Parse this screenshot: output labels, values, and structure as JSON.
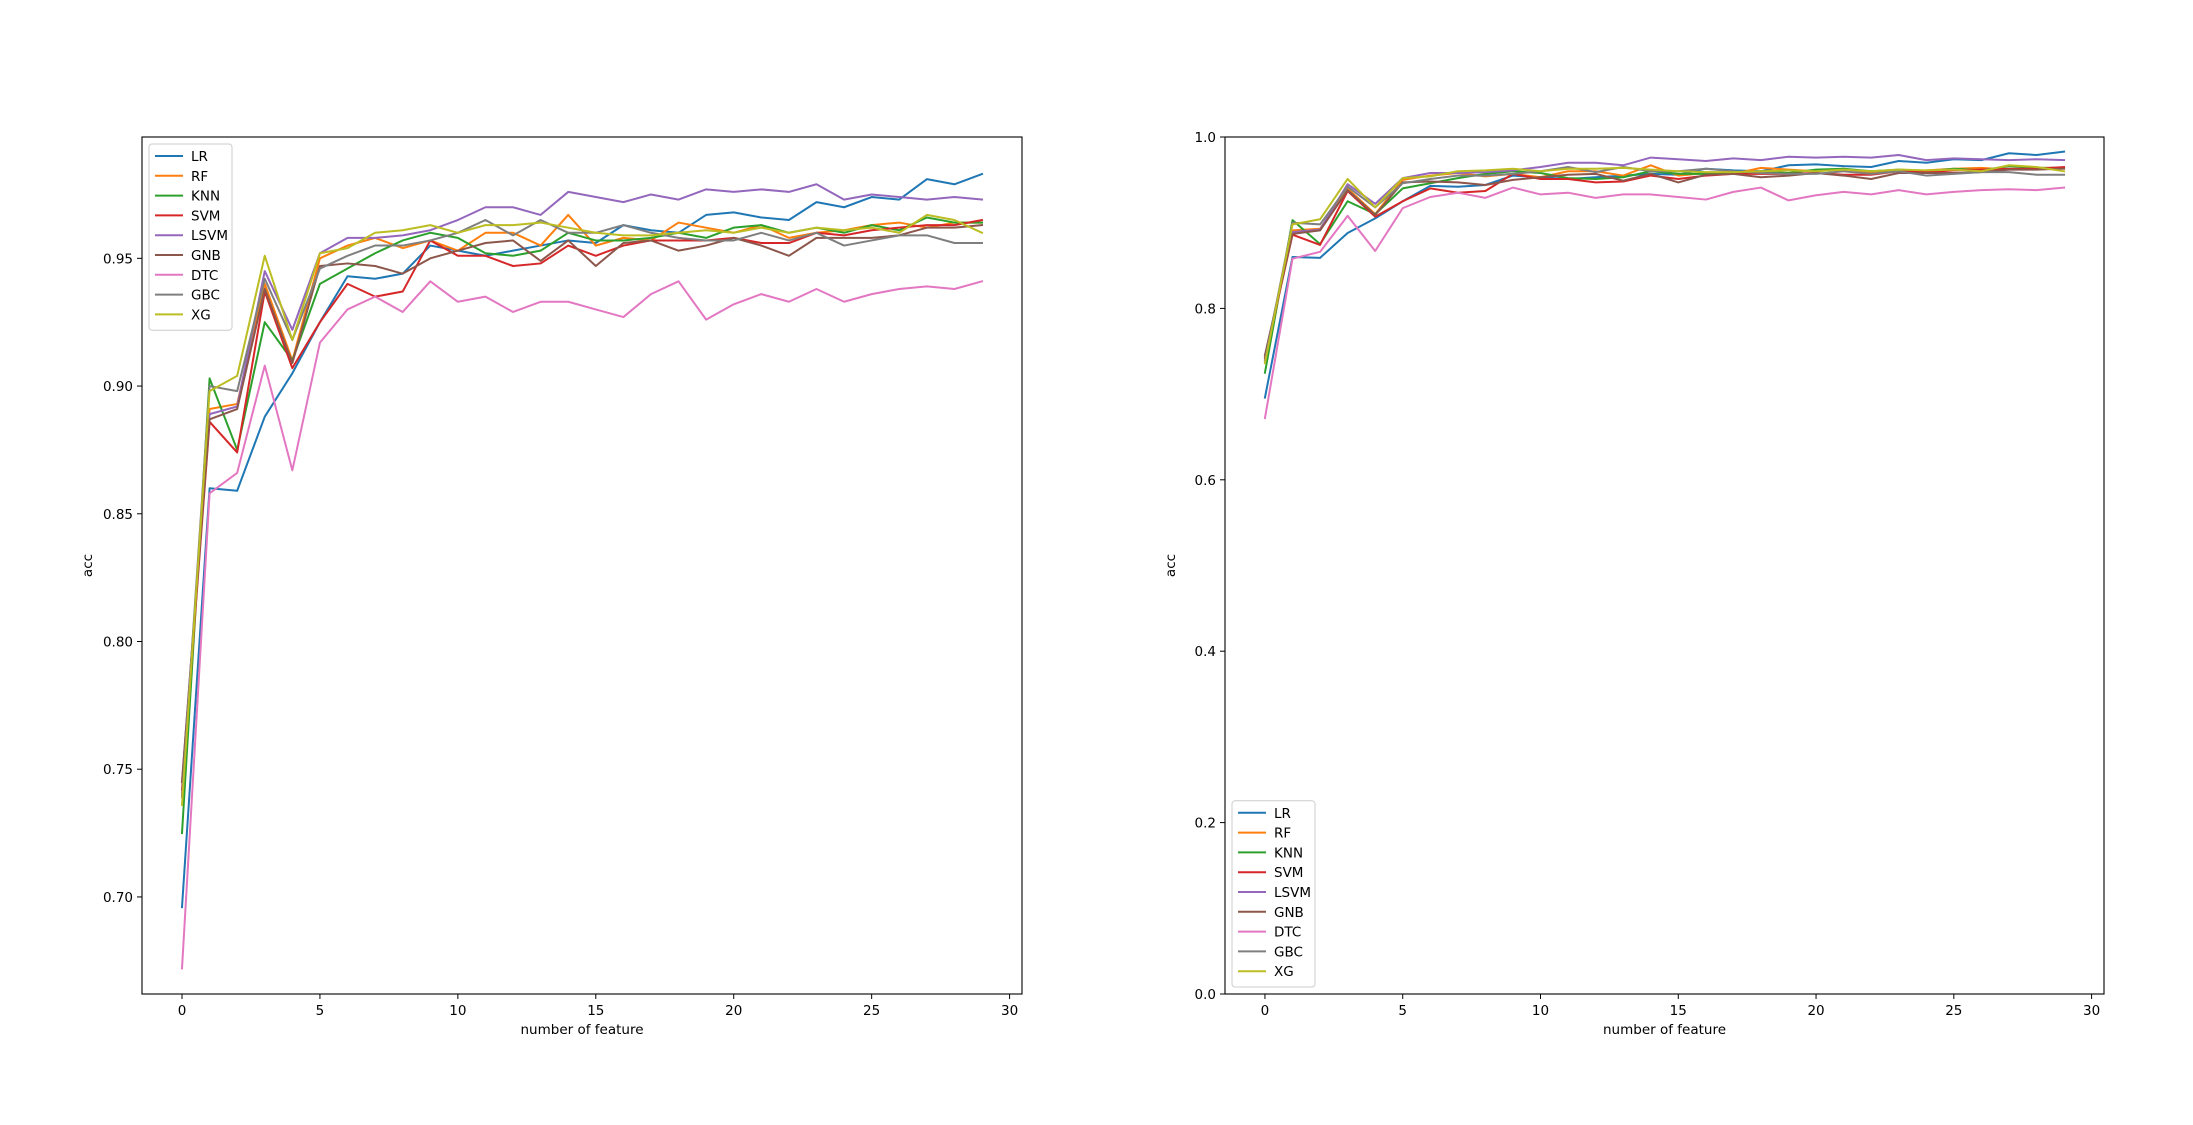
{
  "colors": {
    "LR": "#1f77b4",
    "RF": "#ff7f0e",
    "KNN": "#2ca02c",
    "SVM": "#d62728",
    "LSVM": "#9467bd",
    "GNB": "#8c564b",
    "DTC": "#e377c2",
    "GBC": "#7f7f7f",
    "XG": "#bcbd22"
  },
  "chart_data": [
    {
      "type": "line",
      "xlabel": "number of feature",
      "ylabel": "acc",
      "xlim": [
        -1.45,
        30.45
      ],
      "ylim": [
        0.662,
        0.9975
      ],
      "xticks": [
        0,
        5,
        10,
        15,
        20,
        25,
        30
      ],
      "yticks": [
        0.7,
        0.75,
        0.8,
        0.85,
        0.9,
        0.95
      ],
      "ytick_labels": [
        "0.70",
        "0.75",
        "0.80",
        "0.85",
        "0.90",
        "0.95"
      ],
      "legend_loc": "upper left",
      "x": [
        0,
        1,
        2,
        3,
        4,
        5,
        6,
        7,
        8,
        9,
        10,
        11,
        12,
        13,
        14,
        15,
        16,
        17,
        18,
        19,
        20,
        21,
        22,
        23,
        24,
        25,
        26,
        27,
        28,
        29
      ],
      "series": [
        {
          "name": "LR",
          "values": [
            0.696,
            0.86,
            0.859,
            0.888,
            0.905,
            0.925,
            0.943,
            0.942,
            0.944,
            0.955,
            0.953,
            0.951,
            0.953,
            0.955,
            0.957,
            0.956,
            0.963,
            0.961,
            0.96,
            0.967,
            0.968,
            0.966,
            0.965,
            0.972,
            0.97,
            0.974,
            0.973,
            0.981,
            0.979,
            0.983
          ]
        },
        {
          "name": "RF",
          "values": [
            0.74,
            0.891,
            0.893,
            0.94,
            0.91,
            0.95,
            0.955,
            0.958,
            0.954,
            0.957,
            0.953,
            0.96,
            0.96,
            0.955,
            0.967,
            0.955,
            0.958,
            0.957,
            0.964,
            0.962,
            0.96,
            0.963,
            0.958,
            0.96,
            0.961,
            0.963,
            0.964,
            0.962,
            0.964,
            0.964
          ]
        },
        {
          "name": "KNN",
          "values": [
            0.725,
            0.903,
            0.875,
            0.925,
            0.91,
            0.94,
            0.946,
            0.952,
            0.957,
            0.96,
            0.958,
            0.952,
            0.951,
            0.953,
            0.96,
            0.957,
            0.957,
            0.958,
            0.96,
            0.958,
            0.962,
            0.963,
            0.96,
            0.962,
            0.96,
            0.963,
            0.961,
            0.966,
            0.964,
            0.964
          ]
        },
        {
          "name": "SVM",
          "values": [
            0.742,
            0.886,
            0.874,
            0.937,
            0.907,
            0.925,
            0.94,
            0.935,
            0.937,
            0.957,
            0.951,
            0.951,
            0.947,
            0.948,
            0.955,
            0.951,
            0.955,
            0.957,
            0.957,
            0.957,
            0.958,
            0.956,
            0.956,
            0.96,
            0.959,
            0.961,
            0.962,
            0.963,
            0.963,
            0.965
          ]
        },
        {
          "name": "LSVM",
          "values": [
            0.745,
            0.889,
            0.892,
            0.945,
            0.922,
            0.952,
            0.958,
            0.958,
            0.959,
            0.961,
            0.965,
            0.97,
            0.97,
            0.967,
            0.976,
            0.974,
            0.972,
            0.975,
            0.973,
            0.977,
            0.976,
            0.977,
            0.976,
            0.979,
            0.973,
            0.975,
            0.974,
            0.973,
            0.974,
            0.973
          ]
        },
        {
          "name": "GNB",
          "values": [
            0.745,
            0.887,
            0.891,
            0.938,
            0.909,
            0.947,
            0.948,
            0.947,
            0.944,
            0.95,
            0.953,
            0.956,
            0.957,
            0.949,
            0.957,
            0.947,
            0.956,
            0.957,
            0.953,
            0.955,
            0.958,
            0.955,
            0.951,
            0.958,
            0.958,
            0.958,
            0.959,
            0.962,
            0.962,
            0.963
          ]
        },
        {
          "name": "DTC",
          "values": [
            0.672,
            0.858,
            0.866,
            0.908,
            0.867,
            0.917,
            0.93,
            0.935,
            0.929,
            0.941,
            0.933,
            0.935,
            0.929,
            0.933,
            0.933,
            0.93,
            0.927,
            0.936,
            0.941,
            0.926,
            0.932,
            0.936,
            0.933,
            0.938,
            0.933,
            0.936,
            0.938,
            0.939,
            0.938,
            0.941
          ]
        },
        {
          "name": "GBC",
          "values": [
            0.739,
            0.9,
            0.898,
            0.942,
            0.918,
            0.946,
            0.951,
            0.955,
            0.955,
            0.957,
            0.96,
            0.965,
            0.959,
            0.965,
            0.96,
            0.96,
            0.963,
            0.96,
            0.958,
            0.957,
            0.957,
            0.96,
            0.957,
            0.96,
            0.955,
            0.957,
            0.959,
            0.959,
            0.956,
            0.956
          ]
        },
        {
          "name": "XG",
          "values": [
            0.736,
            0.898,
            0.904,
            0.951,
            0.918,
            0.952,
            0.954,
            0.96,
            0.961,
            0.963,
            0.96,
            0.963,
            0.963,
            0.964,
            0.962,
            0.96,
            0.959,
            0.959,
            0.96,
            0.961,
            0.96,
            0.962,
            0.96,
            0.962,
            0.961,
            0.962,
            0.96,
            0.967,
            0.965,
            0.96
          ]
        }
      ]
    },
    {
      "type": "line",
      "xlabel": "number of feature",
      "ylabel": "acc",
      "xlim": [
        -1.45,
        30.45
      ],
      "ylim": [
        0.0,
        1.0
      ],
      "xticks": [
        0,
        5,
        10,
        15,
        20,
        25,
        30
      ],
      "yticks": [
        0.0,
        0.2,
        0.4,
        0.6,
        0.8,
        1.0
      ],
      "ytick_labels": [
        "0.0",
        "0.2",
        "0.4",
        "0.6",
        "0.8",
        "1.0"
      ],
      "legend_loc": "lower left",
      "x": [
        0,
        1,
        2,
        3,
        4,
        5,
        6,
        7,
        8,
        9,
        10,
        11,
        12,
        13,
        14,
        15,
        16,
        17,
        18,
        19,
        20,
        21,
        22,
        23,
        24,
        25,
        26,
        27,
        28,
        29
      ],
      "series": [
        {
          "name": "LR",
          "values": [
            0.696,
            0.86,
            0.859,
            0.888,
            0.905,
            0.925,
            0.943,
            0.942,
            0.944,
            0.955,
            0.953,
            0.951,
            0.953,
            0.955,
            0.957,
            0.956,
            0.963,
            0.961,
            0.96,
            0.967,
            0.968,
            0.966,
            0.965,
            0.972,
            0.97,
            0.974,
            0.973,
            0.981,
            0.979,
            0.983
          ]
        },
        {
          "name": "RF",
          "values": [
            0.74,
            0.891,
            0.893,
            0.94,
            0.91,
            0.95,
            0.955,
            0.958,
            0.954,
            0.957,
            0.953,
            0.96,
            0.96,
            0.955,
            0.967,
            0.955,
            0.958,
            0.957,
            0.964,
            0.962,
            0.96,
            0.963,
            0.958,
            0.96,
            0.961,
            0.963,
            0.964,
            0.962,
            0.964,
            0.964
          ]
        },
        {
          "name": "KNN",
          "values": [
            0.725,
            0.903,
            0.875,
            0.925,
            0.91,
            0.94,
            0.946,
            0.952,
            0.957,
            0.96,
            0.958,
            0.952,
            0.951,
            0.953,
            0.96,
            0.957,
            0.957,
            0.958,
            0.96,
            0.958,
            0.962,
            0.963,
            0.96,
            0.962,
            0.96,
            0.963,
            0.961,
            0.966,
            0.964,
            0.964
          ]
        },
        {
          "name": "SVM",
          "values": [
            0.742,
            0.886,
            0.874,
            0.937,
            0.907,
            0.925,
            0.94,
            0.935,
            0.937,
            0.957,
            0.951,
            0.951,
            0.947,
            0.948,
            0.955,
            0.951,
            0.955,
            0.957,
            0.957,
            0.957,
            0.958,
            0.956,
            0.956,
            0.96,
            0.959,
            0.961,
            0.962,
            0.963,
            0.963,
            0.965
          ]
        },
        {
          "name": "LSVM",
          "values": [
            0.745,
            0.889,
            0.892,
            0.945,
            0.922,
            0.952,
            0.958,
            0.958,
            0.959,
            0.961,
            0.965,
            0.97,
            0.97,
            0.967,
            0.976,
            0.974,
            0.972,
            0.975,
            0.973,
            0.977,
            0.976,
            0.977,
            0.976,
            0.979,
            0.973,
            0.975,
            0.974,
            0.973,
            0.974,
            0.973
          ]
        },
        {
          "name": "GNB",
          "values": [
            0.745,
            0.887,
            0.891,
            0.938,
            0.909,
            0.947,
            0.948,
            0.947,
            0.944,
            0.95,
            0.953,
            0.956,
            0.957,
            0.949,
            0.957,
            0.947,
            0.956,
            0.957,
            0.953,
            0.955,
            0.958,
            0.955,
            0.951,
            0.958,
            0.958,
            0.958,
            0.959,
            0.962,
            0.962,
            0.963
          ]
        },
        {
          "name": "DTC",
          "values": [
            0.672,
            0.858,
            0.866,
            0.908,
            0.867,
            0.917,
            0.93,
            0.935,
            0.929,
            0.941,
            0.933,
            0.935,
            0.929,
            0.933,
            0.933,
            0.93,
            0.927,
            0.936,
            0.941,
            0.926,
            0.932,
            0.936,
            0.933,
            0.938,
            0.933,
            0.936,
            0.938,
            0.939,
            0.938,
            0.941
          ]
        },
        {
          "name": "GBC",
          "values": [
            0.739,
            0.9,
            0.898,
            0.942,
            0.918,
            0.946,
            0.951,
            0.955,
            0.955,
            0.957,
            0.96,
            0.965,
            0.959,
            0.965,
            0.96,
            0.96,
            0.963,
            0.96,
            0.958,
            0.957,
            0.957,
            0.96,
            0.957,
            0.96,
            0.955,
            0.957,
            0.959,
            0.959,
            0.956,
            0.956
          ]
        },
        {
          "name": "XG",
          "values": [
            0.736,
            0.898,
            0.904,
            0.951,
            0.918,
            0.952,
            0.954,
            0.96,
            0.961,
            0.963,
            0.96,
            0.963,
            0.963,
            0.964,
            0.962,
            0.96,
            0.959,
            0.959,
            0.96,
            0.961,
            0.96,
            0.962,
            0.96,
            0.962,
            0.961,
            0.962,
            0.96,
            0.967,
            0.965,
            0.96
          ]
        }
      ]
    }
  ]
}
